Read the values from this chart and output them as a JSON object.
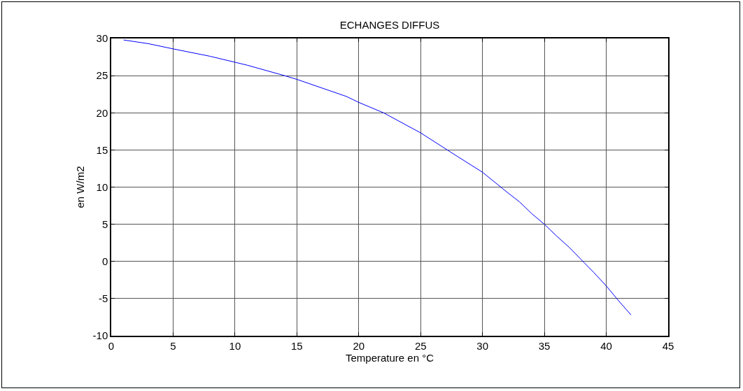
{
  "chart_data": {
    "type": "line",
    "title": "ECHANGES DIFFUS",
    "xlabel": "Temperature en °C",
    "ylabel": "en W/m2",
    "x": [
      1,
      3,
      5,
      8,
      10,
      11,
      14,
      15,
      19,
      20,
      22,
      25,
      28,
      30,
      32,
      33,
      34,
      35,
      36,
      37,
      38,
      39,
      40,
      41,
      42
    ],
    "series": [
      {
        "color": "#0000ff",
        "values": [
          29.8,
          29.3,
          28.6,
          27.6,
          26.8,
          26.4,
          25.0,
          24.5,
          22.2,
          21.4,
          20.0,
          17.3,
          14.1,
          12.0,
          9.3,
          8.0,
          6.4,
          5.0,
          3.4,
          1.9,
          0.2,
          -1.5,
          -3.3,
          -5.3,
          -7.2
        ]
      }
    ],
    "xlim": [
      0,
      45
    ],
    "xticks": [
      0,
      5,
      10,
      15,
      20,
      25,
      30,
      35,
      40,
      45
    ],
    "ylim": [
      -10,
      30
    ],
    "yticks": [
      -10,
      -5,
      0,
      5,
      10,
      15,
      20,
      25,
      30
    ],
    "grid": true,
    "marker": "none",
    "line_style": "solid"
  }
}
